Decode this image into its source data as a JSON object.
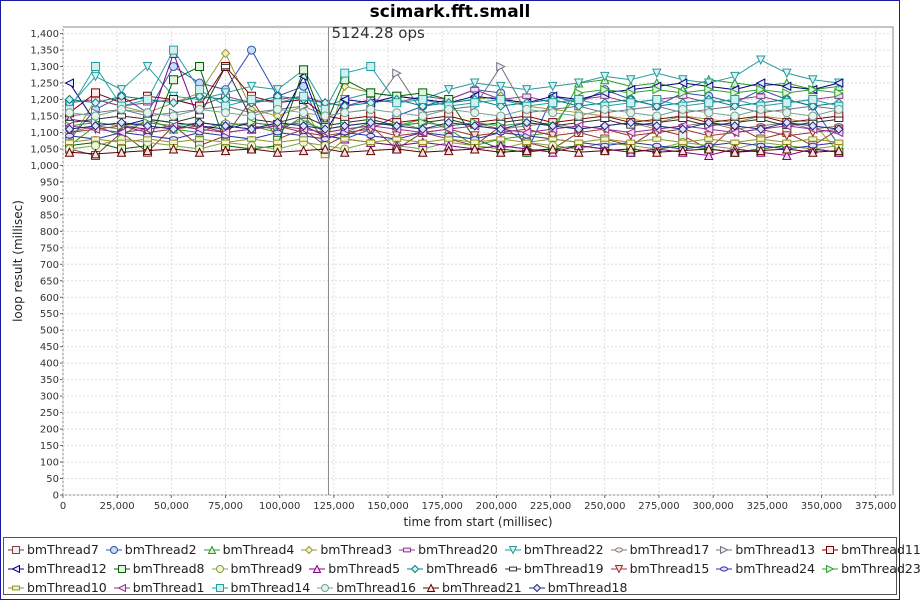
{
  "chart_data": {
    "type": "scatter",
    "title": "scimark.fft.small",
    "xlabel": "time from start (millisec)",
    "ylabel": "loop result (millisec)",
    "xlim": [
      0,
      383000
    ],
    "ylim": [
      0,
      1420
    ],
    "grid": true,
    "legend_position": "bottom",
    "xticks": [
      0,
      25000,
      50000,
      75000,
      100000,
      125000,
      150000,
      175000,
      200000,
      225000,
      250000,
      275000,
      300000,
      325000,
      350000,
      375000
    ],
    "xtick_labels": [
      "0",
      "25,000",
      "50,000",
      "75,000",
      "100,000",
      "125,000",
      "150,000",
      "175,000",
      "200,000",
      "225,000",
      "250,000",
      "275,000",
      "300,000",
      "325,000",
      "350,000",
      "375,000"
    ],
    "yticks": [
      0,
      50,
      100,
      150,
      200,
      250,
      300,
      350,
      400,
      450,
      500,
      550,
      600,
      650,
      700,
      750,
      800,
      850,
      900,
      950,
      1000,
      1050,
      1100,
      1150,
      1200,
      1250,
      1300,
      1350,
      1400
    ],
    "ytick_labels": [
      "0",
      "50",
      "100",
      "150",
      "200",
      "250",
      "300",
      "350",
      "400",
      "450",
      "500",
      "550",
      "600",
      "650",
      "700",
      "750",
      "800",
      "850",
      "900",
      "950",
      "1,000",
      "1,050",
      "1,100",
      "1,150",
      "1,200",
      "1,250",
      "1,300",
      "1,350",
      "1,400"
    ],
    "annotation": {
      "text": "5124.28 ops",
      "x": 122500
    },
    "x": [
      3000,
      15000,
      27000,
      39000,
      51000,
      63000,
      75000,
      87000,
      99000,
      111000,
      121000,
      130000,
      142000,
      154000,
      166000,
      178000,
      190000,
      202000,
      214000,
      226000,
      238000,
      250000,
      262000,
      274000,
      286000,
      298000,
      310000,
      322000,
      334000,
      346000,
      358000
    ],
    "series": [
      {
        "name": "bmThread7",
        "color": "#8b3a3a",
        "fill": "#e8f4f0",
        "marker": "square",
        "values": [
          1050,
          1030,
          1100,
          1040,
          1120,
          1060,
          1090,
          1200,
          1080,
          1110,
          1060,
          1090,
          1120,
          1050,
          1100,
          1080,
          1060,
          1120,
          1070,
          1050,
          1100,
          1080,
          1060,
          1110,
          1090,
          1050,
          1120,
          1080,
          1100,
          1060,
          1110
        ]
      },
      {
        "name": "bmThread2",
        "color": "#3050b0",
        "fill": "#c8dcf8",
        "marker": "circle",
        "values": [
          1080,
          1170,
          1210,
          1160,
          1300,
          1250,
          1230,
          1350,
          1210,
          1240,
          1090,
          1080,
          1110,
          1150,
          1180,
          1200,
          1230,
          1220,
          1040,
          1210,
          1190,
          1230,
          1200,
          1180,
          1220,
          1210,
          1190,
          1230,
          1200,
          1180,
          1060
        ]
      },
      {
        "name": "bmThread4",
        "color": "#2a9a2a",
        "fill": "#d8f0d8",
        "marker": "triangle",
        "values": [
          1060,
          1120,
          1090,
          1140,
          1110,
          1100,
          1130,
          1120,
          1100,
          1150,
          1080,
          1100,
          1130,
          1120,
          1140,
          1110,
          1060,
          1080,
          1090,
          1100,
          1250,
          1260,
          1240,
          1250,
          1230,
          1260,
          1250,
          1240,
          1250,
          1230,
          1240
        ]
      },
      {
        "name": "bmThread3",
        "color": "#9a9a30",
        "fill": "#f0f0c8",
        "marker": "diamond",
        "values": [
          1070,
          1200,
          1180,
          1160,
          1190,
          1220,
          1340,
          1170,
          1150,
          1180,
          1060,
          1240,
          1220,
          1210,
          1200,
          1190,
          1200,
          1210,
          1180,
          1170,
          1160,
          1150,
          1140,
          1130,
          1150,
          1140,
          1130,
          1150,
          1140,
          1130,
          1040
        ]
      },
      {
        "name": "bmThread20",
        "color": "#8a3a8a",
        "fill": "#f4e0f4",
        "marker": "rect",
        "values": [
          1190,
          1200,
          1180,
          1190,
          1200,
          1180,
          1210,
          1190,
          1200,
          1210,
          1190,
          1180,
          1200,
          1190,
          1210,
          1200,
          1230,
          1200,
          1210,
          1190,
          1200,
          1210,
          1190,
          1200,
          1210,
          1190,
          1200,
          1210,
          1190,
          1200,
          1210
        ]
      },
      {
        "name": "bmThread22",
        "color": "#2a9a9a",
        "fill": "#d8f4f4",
        "marker": "tridown",
        "values": [
          1180,
          1270,
          1230,
          1300,
          1210,
          1200,
          1220,
          1240,
          1230,
          1290,
          1180,
          1200,
          1220,
          1210,
          1200,
          1230,
          1250,
          1240,
          1230,
          1240,
          1250,
          1270,
          1260,
          1280,
          1260,
          1250,
          1270,
          1320,
          1280,
          1260,
          1250
        ]
      },
      {
        "name": "bmThread17",
        "color": "#8a7a70",
        "fill": "#f0ece8",
        "marker": "ellipse",
        "values": [
          1100,
          1120,
          1110,
          1130,
          1120,
          1110,
          1130,
          1120,
          1110,
          1140,
          1100,
          1110,
          1120,
          1130,
          1110,
          1120,
          1130,
          1110,
          1120,
          1130,
          1110,
          1120,
          1130,
          1110,
          1120,
          1130,
          1110,
          1120,
          1130,
          1110,
          1120
        ]
      },
      {
        "name": "bmThread13",
        "color": "#707080",
        "fill": "#f0f0f4",
        "marker": "triright",
        "values": [
          1150,
          1160,
          1170,
          1150,
          1160,
          1170,
          1180,
          1160,
          1170,
          1180,
          1150,
          1160,
          1170,
          1280,
          1160,
          1170,
          1180,
          1300,
          1160,
          1170,
          1180,
          1160,
          1170,
          1180,
          1160,
          1170,
          1180,
          1160,
          1170,
          1180,
          1170
        ]
      },
      {
        "name": "bmThread11",
        "color": "#800000",
        "fill": "#fbe8e8",
        "marker": "square",
        "values": [
          1160,
          1220,
          1190,
          1210,
          1200,
          1180,
          1300,
          1210,
          1190,
          1200,
          1150,
          1140,
          1150,
          1130,
          1140,
          1150,
          1130,
          1140,
          1150,
          1130,
          1140,
          1150,
          1130,
          1140,
          1150,
          1130,
          1140,
          1150,
          1130,
          1140,
          1150
        ]
      },
      {
        "name": "bmThread12",
        "color": "#000080",
        "fill": "#e8e8fb",
        "marker": "trileft",
        "values": [
          1250,
          1130,
          1120,
          1140,
          1130,
          1120,
          1110,
          1130,
          1120,
          1270,
          1100,
          1200,
          1190,
          1210,
          1200,
          1190,
          1210,
          1200,
          1190,
          1210,
          1200,
          1220,
          1230,
          1240,
          1250,
          1240,
          1230,
          1250,
          1240,
          1230,
          1250
        ]
      },
      {
        "name": "bmThread8",
        "color": "#006000",
        "fill": "#e0f4e0",
        "marker": "square",
        "values": [
          1060,
          1070,
          1050,
          1060,
          1260,
          1300,
          1060,
          1050,
          1060,
          1290,
          1120,
          1260,
          1220,
          1210,
          1220,
          1200,
          1080,
          1050,
          1040,
          1050,
          1060,
          1050,
          1040,
          1050,
          1060,
          1050,
          1040,
          1050,
          1060,
          1050,
          1040
        ]
      },
      {
        "name": "bmThread9",
        "color": "#80a040",
        "fill": "#eef6dc",
        "marker": "circle",
        "values": [
          1050,
          1060,
          1080,
          1070,
          1060,
          1050,
          1070,
          1060,
          1050,
          1070,
          1060,
          1050,
          1070,
          1060,
          1050,
          1070,
          1060,
          1050,
          1070,
          1060,
          1050,
          1070,
          1060,
          1050,
          1070,
          1060,
          1050,
          1070,
          1060,
          1050,
          1060
        ]
      },
      {
        "name": "bmThread5",
        "color": "#800080",
        "fill": "#f4e0f4",
        "marker": "triangle",
        "values": [
          1140,
          1130,
          1120,
          1110,
          1340,
          1130,
          1120,
          1110,
          1130,
          1120,
          1090,
          1080,
          1070,
          1060,
          1070,
          1060,
          1050,
          1060,
          1050,
          1040,
          1060,
          1050,
          1040,
          1050,
          1040,
          1030,
          1050,
          1040,
          1030,
          1050,
          1040
        ]
      },
      {
        "name": "bmThread6",
        "color": "#008080",
        "fill": "#d8f0f0",
        "marker": "diamond",
        "values": [
          1200,
          1190,
          1210,
          1200,
          1190,
          1210,
          1200,
          1190,
          1210,
          1200,
          1190,
          1180,
          1190,
          1200,
          1180,
          1190,
          1200,
          1180,
          1190,
          1200,
          1180,
          1190,
          1200,
          1180,
          1190,
          1200,
          1180,
          1190,
          1200,
          1180,
          1190
        ]
      },
      {
        "name": "bmThread19",
        "color": "#303030",
        "fill": "#ffffff",
        "marker": "rect",
        "values": [
          1130,
          1140,
          1150,
          1140,
          1130,
          1150,
          1300,
          1140,
          1130,
          1150,
          1120,
          1130,
          1140,
          1120,
          1130,
          1140,
          1120,
          1130,
          1140,
          1120,
          1130,
          1140,
          1120,
          1130,
          1140,
          1120,
          1130,
          1140,
          1120,
          1130,
          1140
        ]
      },
      {
        "name": "bmThread15",
        "color": "#a03030",
        "fill": "#fbe0e0",
        "marker": "tridown",
        "values": [
          1100,
          1110,
          1120,
          1100,
          1110,
          1120,
          1100,
          1110,
          1120,
          1100,
          1090,
          1100,
          1110,
          1090,
          1100,
          1110,
          1090,
          1100,
          1110,
          1090,
          1100,
          1110,
          1090,
          1100,
          1110,
          1090,
          1100,
          1110,
          1090,
          1100,
          1110
        ]
      },
      {
        "name": "bmThread24",
        "color": "#3030a0",
        "fill": "#e0e0f8",
        "marker": "ellipse",
        "values": [
          1090,
          1080,
          1100,
          1090,
          1080,
          1100,
          1090,
          1080,
          1100,
          1090,
          1080,
          1100,
          1090,
          1080,
          1100,
          1090,
          1080,
          1100,
          1090,
          1080,
          1070,
          1060,
          1070,
          1060,
          1050,
          1060,
          1070,
          1060,
          1050,
          1060,
          1070
        ]
      },
      {
        "name": "bmThread23",
        "color": "#30a030",
        "fill": "#e0f4e0",
        "marker": "triright",
        "values": [
          1120,
          1130,
          1120,
          1130,
          1120,
          1130,
          1120,
          1130,
          1120,
          1130,
          1110,
          1120,
          1130,
          1120,
          1130,
          1120,
          1130,
          1120,
          1130,
          1120,
          1220,
          1230,
          1220,
          1230,
          1220,
          1230,
          1220,
          1230,
          1220,
          1230,
          1220
        ]
      },
      {
        "name": "bmThread10",
        "color": "#909020",
        "fill": "#f4f4d0",
        "marker": "rect",
        "values": [
          1070,
          1080,
          1070,
          1080,
          1070,
          1080,
          1070,
          1080,
          1070,
          1080,
          1030,
          1080,
          1070,
          1080,
          1070,
          1080,
          1070,
          1080,
          1070,
          1080,
          1070,
          1080,
          1070,
          1080,
          1070,
          1080,
          1070,
          1080,
          1070,
          1080,
          1070
        ]
      },
      {
        "name": "bmThread1",
        "color": "#903090",
        "fill": "#f4e0f4",
        "marker": "trileft",
        "values": [
          1120,
          1110,
          1100,
          1110,
          1120,
          1110,
          1100,
          1110,
          1120,
          1110,
          1100,
          1110,
          1120,
          1110,
          1100,
          1110,
          1120,
          1110,
          1100,
          1110,
          1120,
          1110,
          1100,
          1110,
          1120,
          1110,
          1100,
          1110,
          1120,
          1110,
          1100
        ]
      },
      {
        "name": "bmThread14",
        "color": "#20a0a0",
        "fill": "#d0f0f0",
        "marker": "square",
        "values": [
          1170,
          1300,
          1180,
          1200,
          1350,
          1230,
          1180,
          1200,
          1190,
          1210,
          1170,
          1280,
          1300,
          1190,
          1200,
          1180,
          1190,
          1200,
          1180,
          1190,
          1200,
          1180,
          1190,
          1200,
          1180,
          1190,
          1200,
          1180,
          1190,
          1200,
          1180
        ]
      },
      {
        "name": "bmThread16",
        "color": "#70a090",
        "fill": "#e4f4ec",
        "marker": "circle",
        "values": [
          1160,
          1150,
          1170,
          1160,
          1150,
          1170,
          1160,
          1150,
          1170,
          1160,
          1150,
          1160,
          1170,
          1160,
          1150,
          1170,
          1160,
          1150,
          1170,
          1160,
          1150,
          1170,
          1160,
          1150,
          1170,
          1160,
          1150,
          1170,
          1160,
          1150,
          1170
        ]
      },
      {
        "name": "bmThread21",
        "color": "#600000",
        "fill": "#f8e4e4",
        "marker": "triangle",
        "values": [
          1040,
          1035,
          1040,
          1045,
          1050,
          1040,
          1045,
          1050,
          1040,
          1045,
          1050,
          1040,
          1045,
          1050,
          1040,
          1045,
          1050,
          1040,
          1045,
          1050,
          1040,
          1045,
          1050,
          1040,
          1045,
          1050,
          1040,
          1045,
          1050,
          1040,
          1045
        ]
      },
      {
        "name": "bmThread18",
        "color": "#1a2a80",
        "fill": "#e0e4f8",
        "marker": "diamond",
        "values": [
          1110,
          1120,
          1130,
          1120,
          1110,
          1130,
          1120,
          1110,
          1130,
          1120,
          1110,
          1120,
          1130,
          1120,
          1110,
          1130,
          1120,
          1110,
          1130,
          1120,
          1110,
          1120,
          1130,
          1120,
          1110,
          1130,
          1120,
          1110,
          1130,
          1120,
          1110
        ]
      }
    ]
  }
}
